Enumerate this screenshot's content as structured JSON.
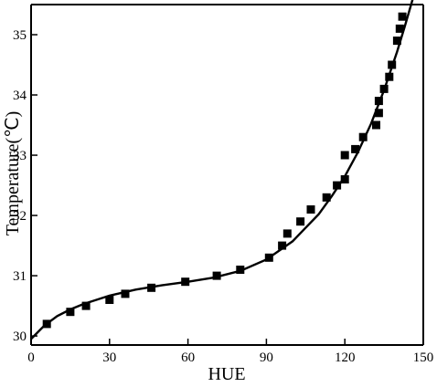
{
  "chart_data": {
    "type": "scatter",
    "title": "",
    "xlabel": "HUE",
    "ylabel": "Temperature(℃)",
    "xlim": [
      0,
      150
    ],
    "ylim": [
      29.85,
      35.5
    ],
    "xticks": [
      0,
      30,
      60,
      90,
      120,
      150
    ],
    "yticks": [
      30,
      31,
      32,
      33,
      34,
      35
    ],
    "grid": false,
    "legend": "none",
    "series": [
      {
        "type": "scatter",
        "marker": "square",
        "color": "#000000",
        "points": [
          [
            6,
            30.2
          ],
          [
            15,
            30.4
          ],
          [
            21,
            30.5
          ],
          [
            30,
            30.6
          ],
          [
            36,
            30.7
          ],
          [
            46,
            30.8
          ],
          [
            59,
            30.9
          ],
          [
            71,
            31.0
          ],
          [
            80,
            31.1
          ],
          [
            91,
            31.3
          ],
          [
            96,
            31.5
          ],
          [
            98,
            31.7
          ],
          [
            103,
            31.9
          ],
          [
            107,
            32.1
          ],
          [
            113,
            32.3
          ],
          [
            117,
            32.5
          ],
          [
            120,
            32.6
          ],
          [
            120,
            33.0
          ],
          [
            124,
            33.1
          ],
          [
            127,
            33.3
          ],
          [
            132,
            33.5
          ],
          [
            133,
            33.7
          ],
          [
            133,
            33.9
          ],
          [
            135,
            34.1
          ],
          [
            137,
            34.3
          ],
          [
            138,
            34.5
          ],
          [
            140,
            34.9
          ],
          [
            141,
            35.1
          ],
          [
            142,
            35.3
          ]
        ]
      },
      {
        "type": "line",
        "style": "solid",
        "color": "#000000",
        "points": [
          [
            0,
            29.95
          ],
          [
            5,
            30.17
          ],
          [
            10,
            30.33
          ],
          [
            15,
            30.44
          ],
          [
            20,
            30.53
          ],
          [
            30,
            30.67
          ],
          [
            40,
            30.77
          ],
          [
            50,
            30.84
          ],
          [
            60,
            30.9
          ],
          [
            70,
            30.97
          ],
          [
            80,
            31.08
          ],
          [
            90,
            31.27
          ],
          [
            100,
            31.57
          ],
          [
            110,
            32.02
          ],
          [
            115,
            32.32
          ],
          [
            120,
            32.65
          ],
          [
            125,
            33.05
          ],
          [
            130,
            33.52
          ],
          [
            135,
            34.08
          ],
          [
            140,
            34.72
          ],
          [
            143,
            35.15
          ],
          [
            146,
            35.6
          ]
        ]
      }
    ]
  }
}
